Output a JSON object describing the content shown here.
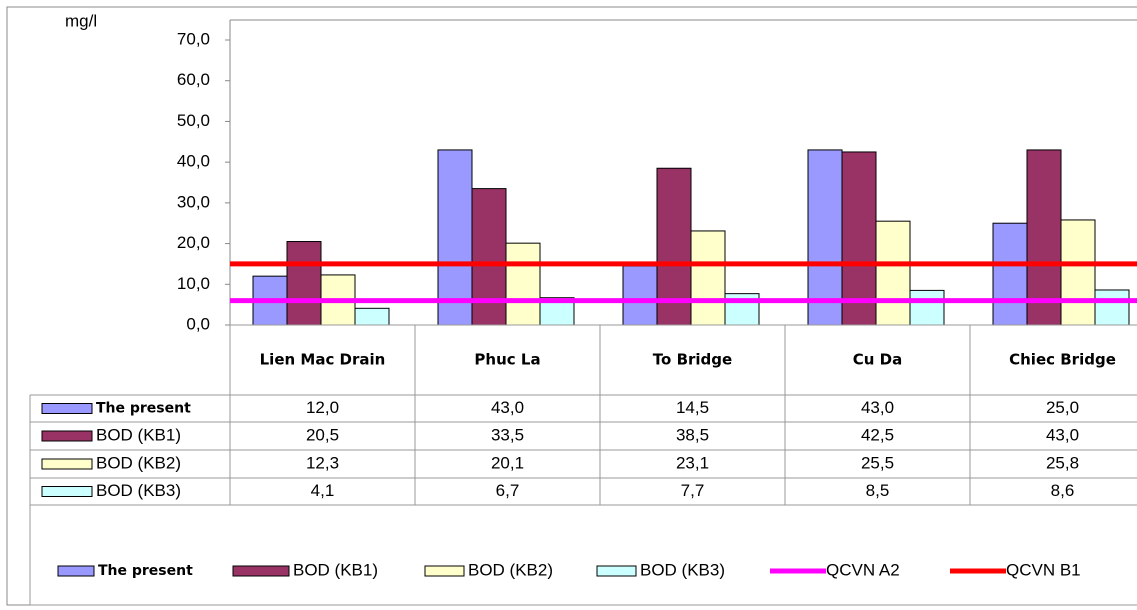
{
  "chart_data": {
    "type": "bar",
    "y_label": "mg/l",
    "categories": [
      "Lien Mac Drain",
      "Phuc La",
      "To Bridge",
      "Cu Da",
      "Chiec Bridge"
    ],
    "series": [
      {
        "name": "The present",
        "color": "#9999ff",
        "values": [
          12.0,
          43.0,
          14.5,
          43.0,
          25.0
        ],
        "value_labels": [
          "12,0",
          "43,0",
          "14,5",
          "43,0",
          "25,0"
        ]
      },
      {
        "name": "BOD (KB1)",
        "color": "#993366",
        "values": [
          20.5,
          33.5,
          38.5,
          42.5,
          43.0
        ],
        "value_labels": [
          "20,5",
          "33,5",
          "38,5",
          "42,5",
          "43,0"
        ]
      },
      {
        "name": "BOD (KB2)",
        "color": "#ffffcc",
        "values": [
          12.3,
          20.1,
          23.1,
          25.5,
          25.8
        ],
        "value_labels": [
          "12,3",
          "20,1",
          "23,1",
          "25,5",
          "25,8"
        ]
      },
      {
        "name": "BOD (KB3)",
        "color": "#ccffff",
        "values": [
          4.1,
          6.7,
          7.7,
          8.5,
          8.6
        ],
        "value_labels": [
          "4,1",
          "6,7",
          "7,7",
          "8,5",
          "8,6"
        ]
      }
    ],
    "reference_lines": [
      {
        "name": "QCVN A2",
        "color": "#ff00ff",
        "value": 6
      },
      {
        "name": "QCVN B1",
        "color": "#ff0000",
        "value": 15
      }
    ],
    "ylim": [
      0,
      70
    ],
    "yticks": [
      {
        "value": 0,
        "label": "0,0"
      },
      {
        "value": 10,
        "label": "10,0"
      },
      {
        "value": 20,
        "label": "20,0"
      },
      {
        "value": 30,
        "label": "30,0"
      },
      {
        "value": 40,
        "label": "40,0"
      },
      {
        "value": 50,
        "label": "50,0"
      },
      {
        "value": 60,
        "label": "60,0"
      },
      {
        "value": 70,
        "label": "70,0"
      }
    ],
    "grid": false,
    "legend": "bottom"
  }
}
